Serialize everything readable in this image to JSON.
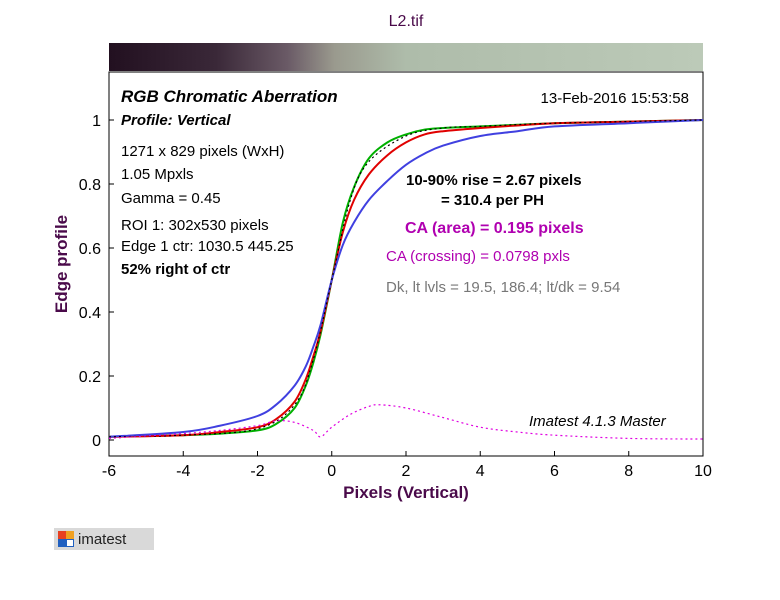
{
  "chart_data": {
    "type": "line",
    "title": "L2.tif",
    "xlabel": "Pixels (Vertical)",
    "ylabel": "Edge profile",
    "xlim": [
      -6,
      10
    ],
    "ylim": [
      -0.05,
      1.15
    ],
    "xticks": [
      "-6",
      "-4",
      "-2",
      "0",
      "2",
      "4",
      "6",
      "8",
      "10"
    ],
    "yticks": [
      "0",
      "0.2",
      "0.4",
      "0.6",
      "0.8",
      "1"
    ],
    "grid": false,
    "series": [
      {
        "color": "#00b000",
        "x": [
          -6,
          -4,
          -3,
          -2,
          -1.5,
          -1,
          -0.7,
          -0.5,
          -0.3,
          0,
          0.3,
          0.6,
          1,
          1.5,
          2,
          2.5,
          3,
          4,
          5,
          6,
          8,
          10
        ],
        "y": [
          0.01,
          0.015,
          0.02,
          0.03,
          0.05,
          0.1,
          0.17,
          0.24,
          0.33,
          0.5,
          0.68,
          0.79,
          0.88,
          0.93,
          0.955,
          0.97,
          0.975,
          0.98,
          0.985,
          0.99,
          0.995,
          1.0
        ]
      },
      {
        "color": "#e00000",
        "x": [
          -6,
          -4,
          -3,
          -2,
          -1.5,
          -1,
          -0.7,
          -0.5,
          -0.3,
          0,
          0.3,
          0.6,
          1,
          1.5,
          2,
          2.5,
          3,
          4,
          5,
          6,
          8,
          10
        ],
        "y": [
          0.01,
          0.015,
          0.025,
          0.04,
          0.065,
          0.12,
          0.19,
          0.26,
          0.34,
          0.5,
          0.65,
          0.75,
          0.83,
          0.89,
          0.93,
          0.955,
          0.965,
          0.975,
          0.983,
          0.99,
          0.995,
          1.0
        ]
      },
      {
        "color": "#4040e0",
        "x": [
          -6,
          -4,
          -3,
          -2,
          -1.5,
          -1,
          -0.7,
          -0.5,
          -0.3,
          0,
          0.3,
          0.6,
          1,
          1.5,
          2,
          2.5,
          3,
          4,
          5,
          6,
          8,
          10
        ],
        "y": [
          0.01,
          0.025,
          0.045,
          0.075,
          0.11,
          0.17,
          0.23,
          0.29,
          0.36,
          0.5,
          0.61,
          0.68,
          0.75,
          0.81,
          0.86,
          0.895,
          0.92,
          0.95,
          0.965,
          0.98,
          0.99,
          1.0
        ]
      },
      {
        "color": "#000000",
        "dash": true,
        "x": [
          -6,
          -4,
          -2,
          -1,
          -0.5,
          0,
          0.5,
          1,
          2,
          3,
          4,
          6,
          10
        ],
        "y": [
          0.01,
          0.015,
          0.035,
          0.11,
          0.25,
          0.5,
          0.75,
          0.87,
          0.95,
          0.975,
          0.98,
          0.99,
          1.0
        ]
      },
      {
        "color": "#e000e0",
        "dash": true,
        "x": [
          -6,
          -4,
          -3,
          -2,
          -1.5,
          -1,
          -0.5,
          -0.3,
          0,
          0.5,
          1,
          1.3,
          2,
          3,
          4,
          5,
          6,
          8,
          10
        ],
        "y": [
          0.005,
          0.02,
          0.03,
          0.045,
          0.06,
          0.055,
          0.03,
          0.01,
          0.04,
          0.08,
          0.105,
          0.11,
          0.1,
          0.07,
          0.04,
          0.025,
          0.015,
          0.005,
          0.003
        ]
      }
    ]
  },
  "annotations": {
    "heading": "RGB Chromatic Aberration",
    "subheading": "Profile: Vertical",
    "size": "1271 x 829 pixels (WxH)",
    "mpxls": "1.05 Mpxls",
    "gamma": "Gamma = 0.45",
    "roi": "ROI 1: 302x530 pixels",
    "edge": "Edge 1 ctr: 1030.5  445.25",
    "position": "52% right of ctr",
    "date": "13-Feb-2016 15:53:58",
    "rise": "10-90% rise = 2.67 pixels",
    "per_ph": "= 310.4 per PH",
    "ca_area": "CA (area) = 0.195 pixels",
    "ca_crossing": "CA (crossing) = 0.0798 pxls",
    "levels": "Dk, lt lvls = 19.5, 186.4;  lt/dk = 9.54",
    "version": "Imatest 4.1.3  Master"
  },
  "logo_text": "imatest",
  "colors": {
    "title": "#4a0a4a",
    "ca": "#b000b0",
    "grey_text": "#777777",
    "bar_dark": "#2a1428",
    "bar_light": "#b8c8b4"
  }
}
